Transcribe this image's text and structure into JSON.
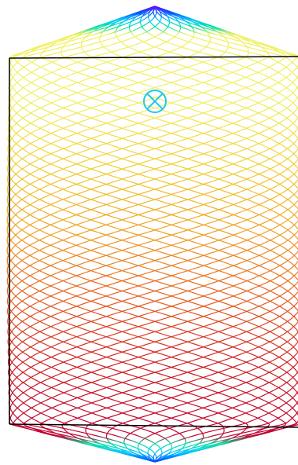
{
  "figure": {
    "description_free": true,
    "mesh": {
      "helix_count": 28,
      "color_scale": [
        "#7f00ff",
        "#0055ff",
        "#00c8ff",
        "#00e0a0",
        "#f0f060",
        "#f0d030",
        "#f0a020",
        "#e86020",
        "#d02020",
        "#c00030"
      ],
      "outline_color": "#000000",
      "marker_color": "#22c8f0"
    },
    "marker": {
      "icon": "circle-x-marker"
    }
  }
}
